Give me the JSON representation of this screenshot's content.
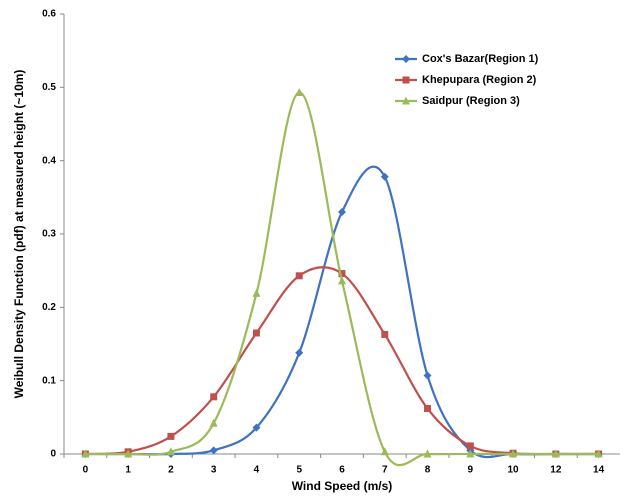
{
  "chart_data": {
    "type": "line",
    "x_label": "Wind Speed (m/s)",
    "y_label": "Weibull Density Function (pdf)  at measured height (~10m)",
    "categories": [
      "0",
      "1",
      "2",
      "3",
      "4",
      "5",
      "6",
      "7",
      "8",
      "9",
      "10",
      "12",
      "14"
    ],
    "series": [
      {
        "name": "Cox's Bazar(Region 1)",
        "color": "#3f72c0",
        "marker": "diamond",
        "values": [
          0,
          0,
          0,
          0.005,
          0.036,
          0.138,
          0.33,
          0.378,
          0.107,
          0.005,
          0,
          0,
          0
        ]
      },
      {
        "name": "Khepupara (Region 2)",
        "color": "#c0504d",
        "marker": "square",
        "values": [
          0,
          0.003,
          0.024,
          0.078,
          0.165,
          0.243,
          0.246,
          0.163,
          0.062,
          0.011,
          0.001,
          0,
          0
        ]
      },
      {
        "name": "Saidpur (Region 3)",
        "color": "#9bbb59",
        "marker": "triangle",
        "values": [
          0,
          0,
          0.003,
          0.042,
          0.219,
          0.493,
          0.236,
          0.003,
          0,
          0,
          0,
          0,
          0
        ]
      }
    ],
    "ylim": [
      0,
      0.6
    ],
    "yticks": [
      0,
      0.1,
      0.2,
      0.3,
      0.4,
      0.5,
      0.6
    ],
    "smooth": true,
    "legend": "upper-right"
  }
}
